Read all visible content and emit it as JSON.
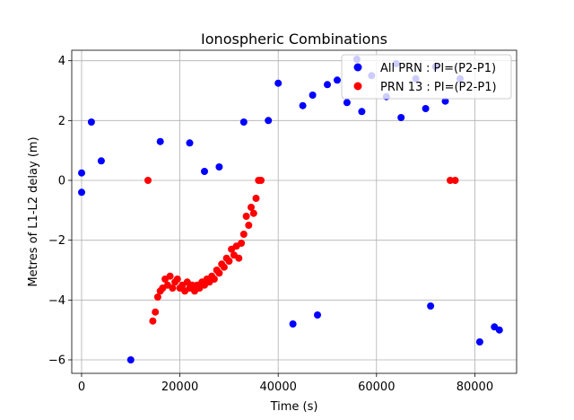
{
  "chart_data": {
    "type": "scatter",
    "title": "Ionospheric Combinations",
    "xlabel": "Time (s)",
    "ylabel": "Metres of L1-L2 delay (m)",
    "xlim": [
      -2000,
      88500
    ],
    "ylim": [
      -6.45,
      4.35
    ],
    "xticks": [
      0,
      20000,
      40000,
      60000,
      80000
    ],
    "yticks": [
      -6,
      -4,
      -2,
      0,
      2,
      4
    ],
    "xtick_labels": [
      "0",
      "20000",
      "40000",
      "60000",
      "80000"
    ],
    "ytick_labels": [
      "−6",
      "−4",
      "−2",
      "0",
      "2",
      "4"
    ],
    "grid": true,
    "legend_position": "top-right",
    "series": [
      {
        "name": "All PRN : PI=(P2-P1)",
        "color": "#0000ff",
        "points": [
          [
            0,
            0.25
          ],
          [
            0,
            -0.4
          ],
          [
            2000,
            1.95
          ],
          [
            4000,
            0.65
          ],
          [
            10000,
            -6.0
          ],
          [
            16000,
            1.3
          ],
          [
            22000,
            1.25
          ],
          [
            25000,
            0.3
          ],
          [
            28000,
            0.45
          ],
          [
            33000,
            1.95
          ],
          [
            38000,
            2.0
          ],
          [
            40000,
            3.25
          ],
          [
            45000,
            2.5
          ],
          [
            47000,
            2.85
          ],
          [
            50000,
            3.2
          ],
          [
            52000,
            3.35
          ],
          [
            54000,
            2.6
          ],
          [
            56000,
            4.05
          ],
          [
            57000,
            2.3
          ],
          [
            59000,
            3.5
          ],
          [
            62000,
            2.8
          ],
          [
            64000,
            3.9
          ],
          [
            65000,
            2.1
          ],
          [
            68000,
            3.4
          ],
          [
            70000,
            2.4
          ],
          [
            72000,
            3.8
          ],
          [
            74000,
            2.65
          ],
          [
            77000,
            3.4
          ],
          [
            43000,
            -4.8
          ],
          [
            48000,
            -4.5
          ],
          [
            71000,
            -4.2
          ],
          [
            81000,
            -5.4
          ],
          [
            84000,
            -4.9
          ],
          [
            85000,
            -5.0
          ]
        ]
      },
      {
        "name": "PRN 13 : PI=(P2-P1)",
        "color": "#ff0000",
        "points": [
          [
            13500,
            0.0
          ],
          [
            14500,
            -4.7
          ],
          [
            15000,
            -4.4
          ],
          [
            15500,
            -3.9
          ],
          [
            16000,
            -3.7
          ],
          [
            16500,
            -3.6
          ],
          [
            17000,
            -3.3
          ],
          [
            17500,
            -3.5
          ],
          [
            18000,
            -3.2
          ],
          [
            18500,
            -3.6
          ],
          [
            19000,
            -3.4
          ],
          [
            19500,
            -3.3
          ],
          [
            20000,
            -3.6
          ],
          [
            20500,
            -3.5
          ],
          [
            21000,
            -3.7
          ],
          [
            21500,
            -3.4
          ],
          [
            22000,
            -3.6
          ],
          [
            22500,
            -3.5
          ],
          [
            23000,
            -3.7
          ],
          [
            23500,
            -3.5
          ],
          [
            24000,
            -3.6
          ],
          [
            24500,
            -3.4
          ],
          [
            25000,
            -3.5
          ],
          [
            25500,
            -3.3
          ],
          [
            26000,
            -3.4
          ],
          [
            26500,
            -3.2
          ],
          [
            27000,
            -3.3
          ],
          [
            27500,
            -3.0
          ],
          [
            28000,
            -3.1
          ],
          [
            28500,
            -2.8
          ],
          [
            29000,
            -2.9
          ],
          [
            29500,
            -2.6
          ],
          [
            30000,
            -2.7
          ],
          [
            30500,
            -2.3
          ],
          [
            31000,
            -2.5
          ],
          [
            31500,
            -2.2
          ],
          [
            32000,
            -2.6
          ],
          [
            32500,
            -2.1
          ],
          [
            33000,
            -1.8
          ],
          [
            33500,
            -1.2
          ],
          [
            34000,
            -1.5
          ],
          [
            34500,
            -0.9
          ],
          [
            35000,
            -1.1
          ],
          [
            35500,
            -0.6
          ],
          [
            36000,
            0.0
          ],
          [
            36500,
            0.0
          ],
          [
            75000,
            0.0
          ],
          [
            76000,
            0.0
          ]
        ]
      }
    ]
  }
}
